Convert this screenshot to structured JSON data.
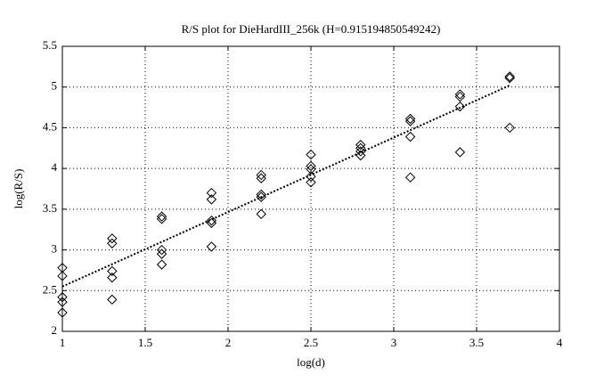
{
  "chart_data": {
    "type": "scatter",
    "title": "R/S plot for DieHardIII_256k (H=0.915194850549242)",
    "xlabel": "log(d)",
    "ylabel": "log(R/S)",
    "xlim": [
      1,
      4
    ],
    "ylim": [
      2,
      5.5
    ],
    "xticks": [
      1,
      1.5,
      2,
      2.5,
      3,
      3.5,
      4
    ],
    "yticks": [
      2,
      2.5,
      3,
      3.5,
      4,
      4.5,
      5,
      5.5
    ],
    "grid": true,
    "series": [
      {
        "type": "scatter",
        "marker": "diamond",
        "color": "#000000",
        "x": [
          1,
          1,
          1,
          1,
          1,
          1.3,
          1.3,
          1.3,
          1.3,
          1.3,
          1.6,
          1.6,
          1.6,
          1.6,
          1.6,
          1.9,
          1.9,
          1.9,
          1.9,
          1.9,
          2.2,
          2.2,
          2.2,
          2.2,
          2.2,
          2.5,
          2.5,
          2.5,
          2.5,
          2.5,
          2.8,
          2.8,
          2.8,
          2.8,
          3.1,
          3.1,
          3.1,
          3.1,
          3.4,
          3.4,
          3.4,
          3.4,
          3.7,
          3.7,
          3.7
        ],
        "values": [
          2.78,
          2.68,
          2.42,
          2.36,
          2.23,
          3.14,
          3.08,
          2.74,
          2.66,
          2.39,
          3.41,
          3.38,
          3.0,
          2.95,
          2.82,
          3.7,
          3.62,
          3.36,
          3.33,
          3.04,
          3.92,
          3.88,
          3.68,
          3.65,
          3.44,
          4.17,
          4.03,
          3.99,
          3.9,
          3.83,
          4.29,
          4.25,
          4.21,
          4.16,
          4.61,
          4.58,
          4.39,
          3.89,
          4.91,
          4.88,
          4.76,
          4.2,
          5.13,
          5.11,
          4.5
        ]
      },
      {
        "type": "line",
        "style": "dotted",
        "color": "#000000",
        "x": [
          1,
          3.7
        ],
        "values": [
          2.55,
          5.02
        ]
      }
    ]
  }
}
